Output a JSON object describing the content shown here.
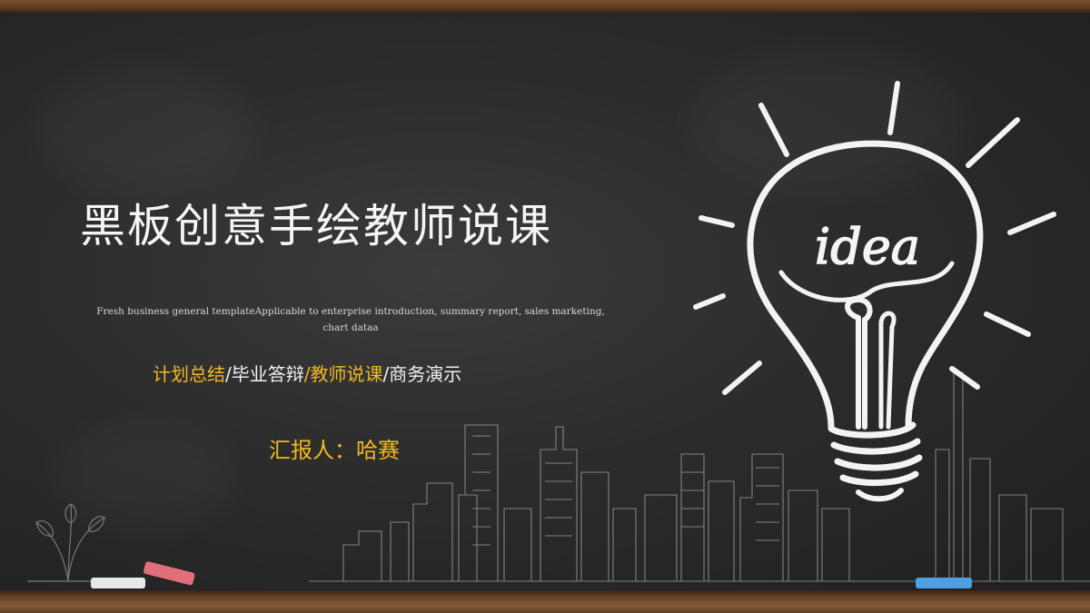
{
  "slide": {
    "title": "黑板创意手绘教师说课",
    "subtitle": "Fresh business general templateApplicable to enterprise introduction, summary report, sales marketing, chart dataa",
    "tags": [
      {
        "text": "计划总结",
        "highlight": true
      },
      {
        "text": "/",
        "highlight": false
      },
      {
        "text": "毕业答辩",
        "highlight": false
      },
      {
        "text": "/",
        "highlight": false
      },
      {
        "text": "教师说课",
        "highlight": true
      },
      {
        "text": "/",
        "highlight": false
      },
      {
        "text": "商务演示",
        "highlight": false
      }
    ],
    "reporter": "汇报人：哈赛",
    "bulb_word": "idea"
  },
  "icons": {
    "bulb": "lightbulb-icon",
    "city": "city-skyline-sketch",
    "plant": "plant-sketch"
  },
  "colors": {
    "board": "#2c2c2c",
    "frame": "#6b4528",
    "chalk_white": "#f5f5f5",
    "highlight": "#f0b820",
    "chalk_pink": "#e06f7a",
    "chalk_blue": "#4fa0e0"
  }
}
